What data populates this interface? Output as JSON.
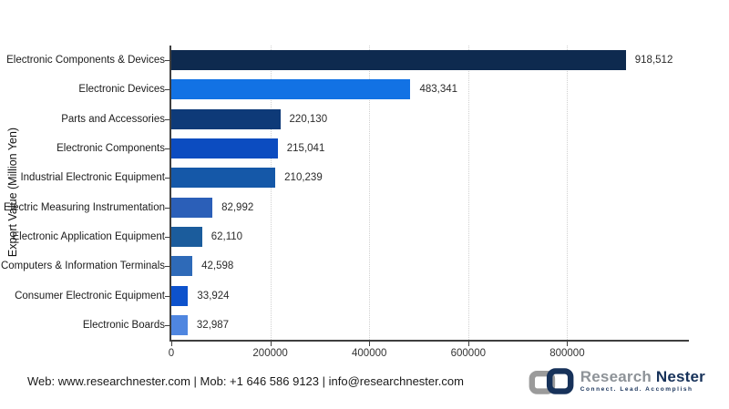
{
  "chart_data": {
    "type": "bar",
    "orientation": "horizontal",
    "title": "",
    "xlabel": "",
    "ylabel": "Export Value (Million Yen)",
    "legend": "none",
    "grid": "vertical dotted",
    "xlim": [
      0,
      1046000
    ],
    "categories": [
      "Electronic Components & Devices",
      "Electronic Devices",
      "Parts and Accessories",
      "Electronic Components",
      "Industrial Electronic Equipment",
      "Electric Measuring Instrumentation",
      "Electronic Application Equipment",
      "Computers & Information Terminals",
      "Consumer Electronic Equipment",
      "Electronic Boards"
    ],
    "values": [
      918512,
      483341,
      220130,
      215041,
      210239,
      82992,
      62110,
      42598,
      33924,
      32987
    ],
    "value_labels": [
      "918,512",
      "483,341",
      "220,130",
      "215,041",
      "210,239",
      "82,992",
      "62,110",
      "42,598",
      "33,924",
      "32,987"
    ],
    "bar_colors": [
      "#0e2a4f",
      "#1272e4",
      "#0e3a78",
      "#0c4cc0",
      "#1558a8",
      "#2b5fb8",
      "#1b5c9c",
      "#2e6ab8",
      "#0d52cc",
      "#4f86e0"
    ],
    "x_ticks": [
      {
        "value": 0,
        "label": "0"
      },
      {
        "value": 200000,
        "label": "200000"
      },
      {
        "value": 400000,
        "label": "400000"
      },
      {
        "value": 600000,
        "label": "600000"
      },
      {
        "value": 800000,
        "label": "800000"
      }
    ],
    "style": {
      "grid_color": "#d0d0d0",
      "axis_color": "#3f3f3f"
    }
  },
  "footer": {
    "contact_line": "Web: www.researchnester.com | Mob: +1 646 586 9123 | info@researchnester.com"
  },
  "logo": {
    "brand_first": "Research",
    "brand_second": "Nester",
    "tagline": "Connect. Lead. Accomplish",
    "colors": {
      "gray": "#9b9b9b",
      "navy": "#17325a"
    }
  }
}
